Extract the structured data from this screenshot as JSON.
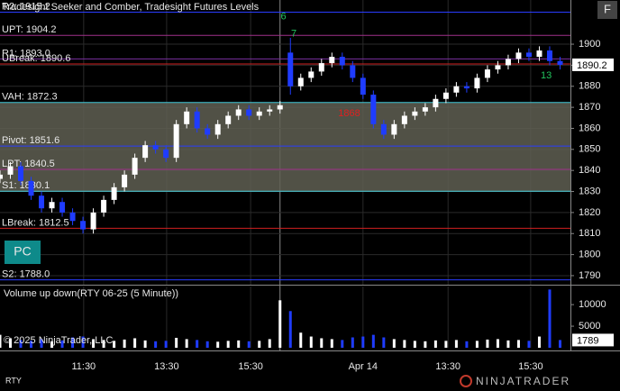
{
  "chart_data": [
    {
      "type": "candlestick",
      "title": "Tradesight Seeker and Comber, Tradesight Futures Levels",
      "x": [
        0,
        3,
        6,
        9,
        12,
        15,
        18,
        21,
        24,
        27,
        30,
        33,
        36,
        39,
        42,
        45,
        48,
        51,
        54,
        57,
        60,
        63,
        66,
        69,
        72,
        75,
        78,
        81,
        84,
        87,
        90,
        93,
        96,
        99,
        102,
        105,
        108,
        111,
        114,
        117,
        120,
        123,
        126,
        129,
        132,
        135,
        138,
        141,
        144,
        147,
        150,
        153,
        156,
        159,
        162
      ],
      "open": [
        1836,
        1838,
        1842,
        1835,
        1828,
        1822,
        1825,
        1820,
        1816,
        1812,
        1820,
        1826,
        1832,
        1838,
        1846,
        1852,
        1850,
        1846,
        1862,
        1868,
        1860,
        1857,
        1862,
        1866,
        1869,
        1866,
        1868,
        1869,
        1896,
        1880,
        1884,
        1887,
        1891,
        1894,
        1890,
        1884,
        1876,
        1862,
        1857,
        1862,
        1866,
        1868,
        1870,
        1874,
        1877,
        1880,
        1879,
        1884,
        1888,
        1890,
        1893,
        1896,
        1894,
        1897,
        1892
      ],
      "high": [
        1840,
        1844,
        1844,
        1837,
        1830,
        1827,
        1827,
        1822,
        1818,
        1822,
        1828,
        1834,
        1840,
        1848,
        1854,
        1854,
        1852,
        1864,
        1870,
        1870,
        1862,
        1864,
        1868,
        1871,
        1871,
        1870,
        1871,
        1873,
        1903,
        1886,
        1889,
        1893,
        1896,
        1896,
        1892,
        1886,
        1878,
        1864,
        1864,
        1868,
        1870,
        1872,
        1876,
        1879,
        1882,
        1882,
        1886,
        1890,
        1892,
        1895,
        1898,
        1898,
        1899,
        1899,
        1894
      ],
      "low": [
        1834,
        1836,
        1833,
        1826,
        1820,
        1820,
        1818,
        1814,
        1810,
        1810,
        1818,
        1824,
        1830,
        1836,
        1844,
        1848,
        1844,
        1844,
        1860,
        1858,
        1855,
        1855,
        1860,
        1864,
        1864,
        1864,
        1866,
        1867,
        1876,
        1878,
        1882,
        1885,
        1889,
        1888,
        1882,
        1874,
        1860,
        1855,
        1855,
        1860,
        1864,
        1866,
        1868,
        1872,
        1875,
        1877,
        1877,
        1882,
        1886,
        1888,
        1891,
        1892,
        1892,
        1890,
        1888
      ],
      "close": [
        1838,
        1842,
        1835,
        1828,
        1822,
        1825,
        1820,
        1816,
        1812,
        1820,
        1826,
        1832,
        1838,
        1846,
        1852,
        1850,
        1846,
        1862,
        1868,
        1860,
        1857,
        1862,
        1866,
        1869,
        1866,
        1868,
        1869,
        1871,
        1880,
        1884,
        1887,
        1891,
        1894,
        1890,
        1884,
        1876,
        1862,
        1857,
        1862,
        1866,
        1868,
        1870,
        1874,
        1877,
        1880,
        1879,
        1884,
        1888,
        1890,
        1893,
        1896,
        1894,
        1897,
        1892,
        1890.2
      ],
      "up_color": "#ffffff",
      "down_color": "#1f3cff",
      "xlim": [
        0,
        165
      ],
      "ylim": [
        1785.7,
        1921
      ],
      "yticks": [
        1790,
        1800,
        1810,
        1820,
        1830,
        1840,
        1850,
        1860,
        1870,
        1880,
        1890,
        1900
      ],
      "xticks": [
        {
          "value": 24.2,
          "label": "11:30"
        },
        {
          "value": 48.2,
          "label": "13:30"
        },
        {
          "value": 72.5,
          "label": "15:30"
        },
        {
          "value": 105,
          "label": "Apr 14"
        },
        {
          "value": 129.6,
          "label": "13:30"
        },
        {
          "value": 153.5,
          "label": "15:30"
        }
      ],
      "grid": true,
      "session_break": 81,
      "levels": [
        {
          "label": "R2: 1915.2",
          "value": 1915.2,
          "color": "#2a3cff"
        },
        {
          "label": "UPT: 1904.2",
          "value": 1904.2,
          "color": "#a0308a"
        },
        {
          "label": "R1: 1893.0",
          "value": 1893.0,
          "color": "#7a2fa0"
        },
        {
          "label": "UBreak: 1890.6",
          "value": 1890.6,
          "color": "#d02020"
        },
        {
          "label": "VAH: 1872.3",
          "value": 1872.3,
          "color": "#40c8d8"
        },
        {
          "label": "Pivot: 1851.6",
          "value": 1851.6,
          "color": "#2a3cff"
        },
        {
          "label": "LPT: 1840.5",
          "value": 1840.5,
          "color": "#a0308a"
        },
        {
          "label": "S1: 1830.1",
          "value": 1830.1,
          "color": "#40c8d8"
        },
        {
          "label": "LBreak: 1812.5",
          "value": 1812.5,
          "color": "#d02020"
        },
        {
          "label": "S2: 1788.0",
          "value": 1788.0,
          "color": "#2a3cff"
        }
      ],
      "value_area": {
        "low": 1829.8,
        "high": 1872.3,
        "color": "#5f5f52"
      },
      "annotations": [
        {
          "text": "1868",
          "x": 101,
          "y": 1867,
          "color": "#e02020"
        },
        {
          "text": "6",
          "x": 82,
          "y": 1913,
          "color": "#22c55e"
        },
        {
          "text": "7",
          "x": 85,
          "y": 1905,
          "color": "#22c55e"
        },
        {
          "text": "13",
          "x": 158,
          "y": 1885,
          "color": "#22c55e"
        }
      ],
      "last_price": 1890.2
    },
    {
      "type": "bar",
      "title": "Volume up down(RTY 06-25 (5 Minute))",
      "x": [
        0,
        3,
        6,
        9,
        12,
        15,
        18,
        21,
        24,
        27,
        30,
        33,
        36,
        39,
        42,
        45,
        48,
        51,
        54,
        57,
        60,
        63,
        66,
        69,
        72,
        75,
        78,
        81,
        84,
        87,
        90,
        93,
        96,
        99,
        102,
        105,
        108,
        111,
        114,
        117,
        120,
        123,
        126,
        129,
        132,
        135,
        138,
        141,
        144,
        147,
        150,
        153,
        156,
        159,
        162
      ],
      "values": [
        3000,
        2200,
        1800,
        1600,
        2000,
        1500,
        1700,
        2400,
        2600,
        2000,
        1800,
        1600,
        1900,
        2200,
        1700,
        1500,
        1600,
        2300,
        2000,
        1800,
        1500,
        1400,
        1600,
        1700,
        1500,
        1600,
        2000,
        11000,
        8500,
        3500,
        2600,
        2200,
        2000,
        1800,
        2400,
        2600,
        3000,
        2400,
        2000,
        1800,
        1600,
        1500,
        1700,
        1600,
        1800,
        1500,
        1600,
        1900,
        2000,
        1700,
        1800,
        1600,
        2600,
        13500,
        1789
      ],
      "up_color": "#ffffff",
      "down_color": "#1f3cff",
      "xlim": [
        0,
        165
      ],
      "ylim": [
        0,
        14200
      ],
      "yticks": [
        5000,
        10000
      ],
      "last_value": 1789
    }
  ],
  "copyright": "© 2025 NinjaTrader, LLC",
  "instrument": "RTY",
  "logo": "NINJATRADER",
  "buttons": [
    "PC",
    "F"
  ]
}
